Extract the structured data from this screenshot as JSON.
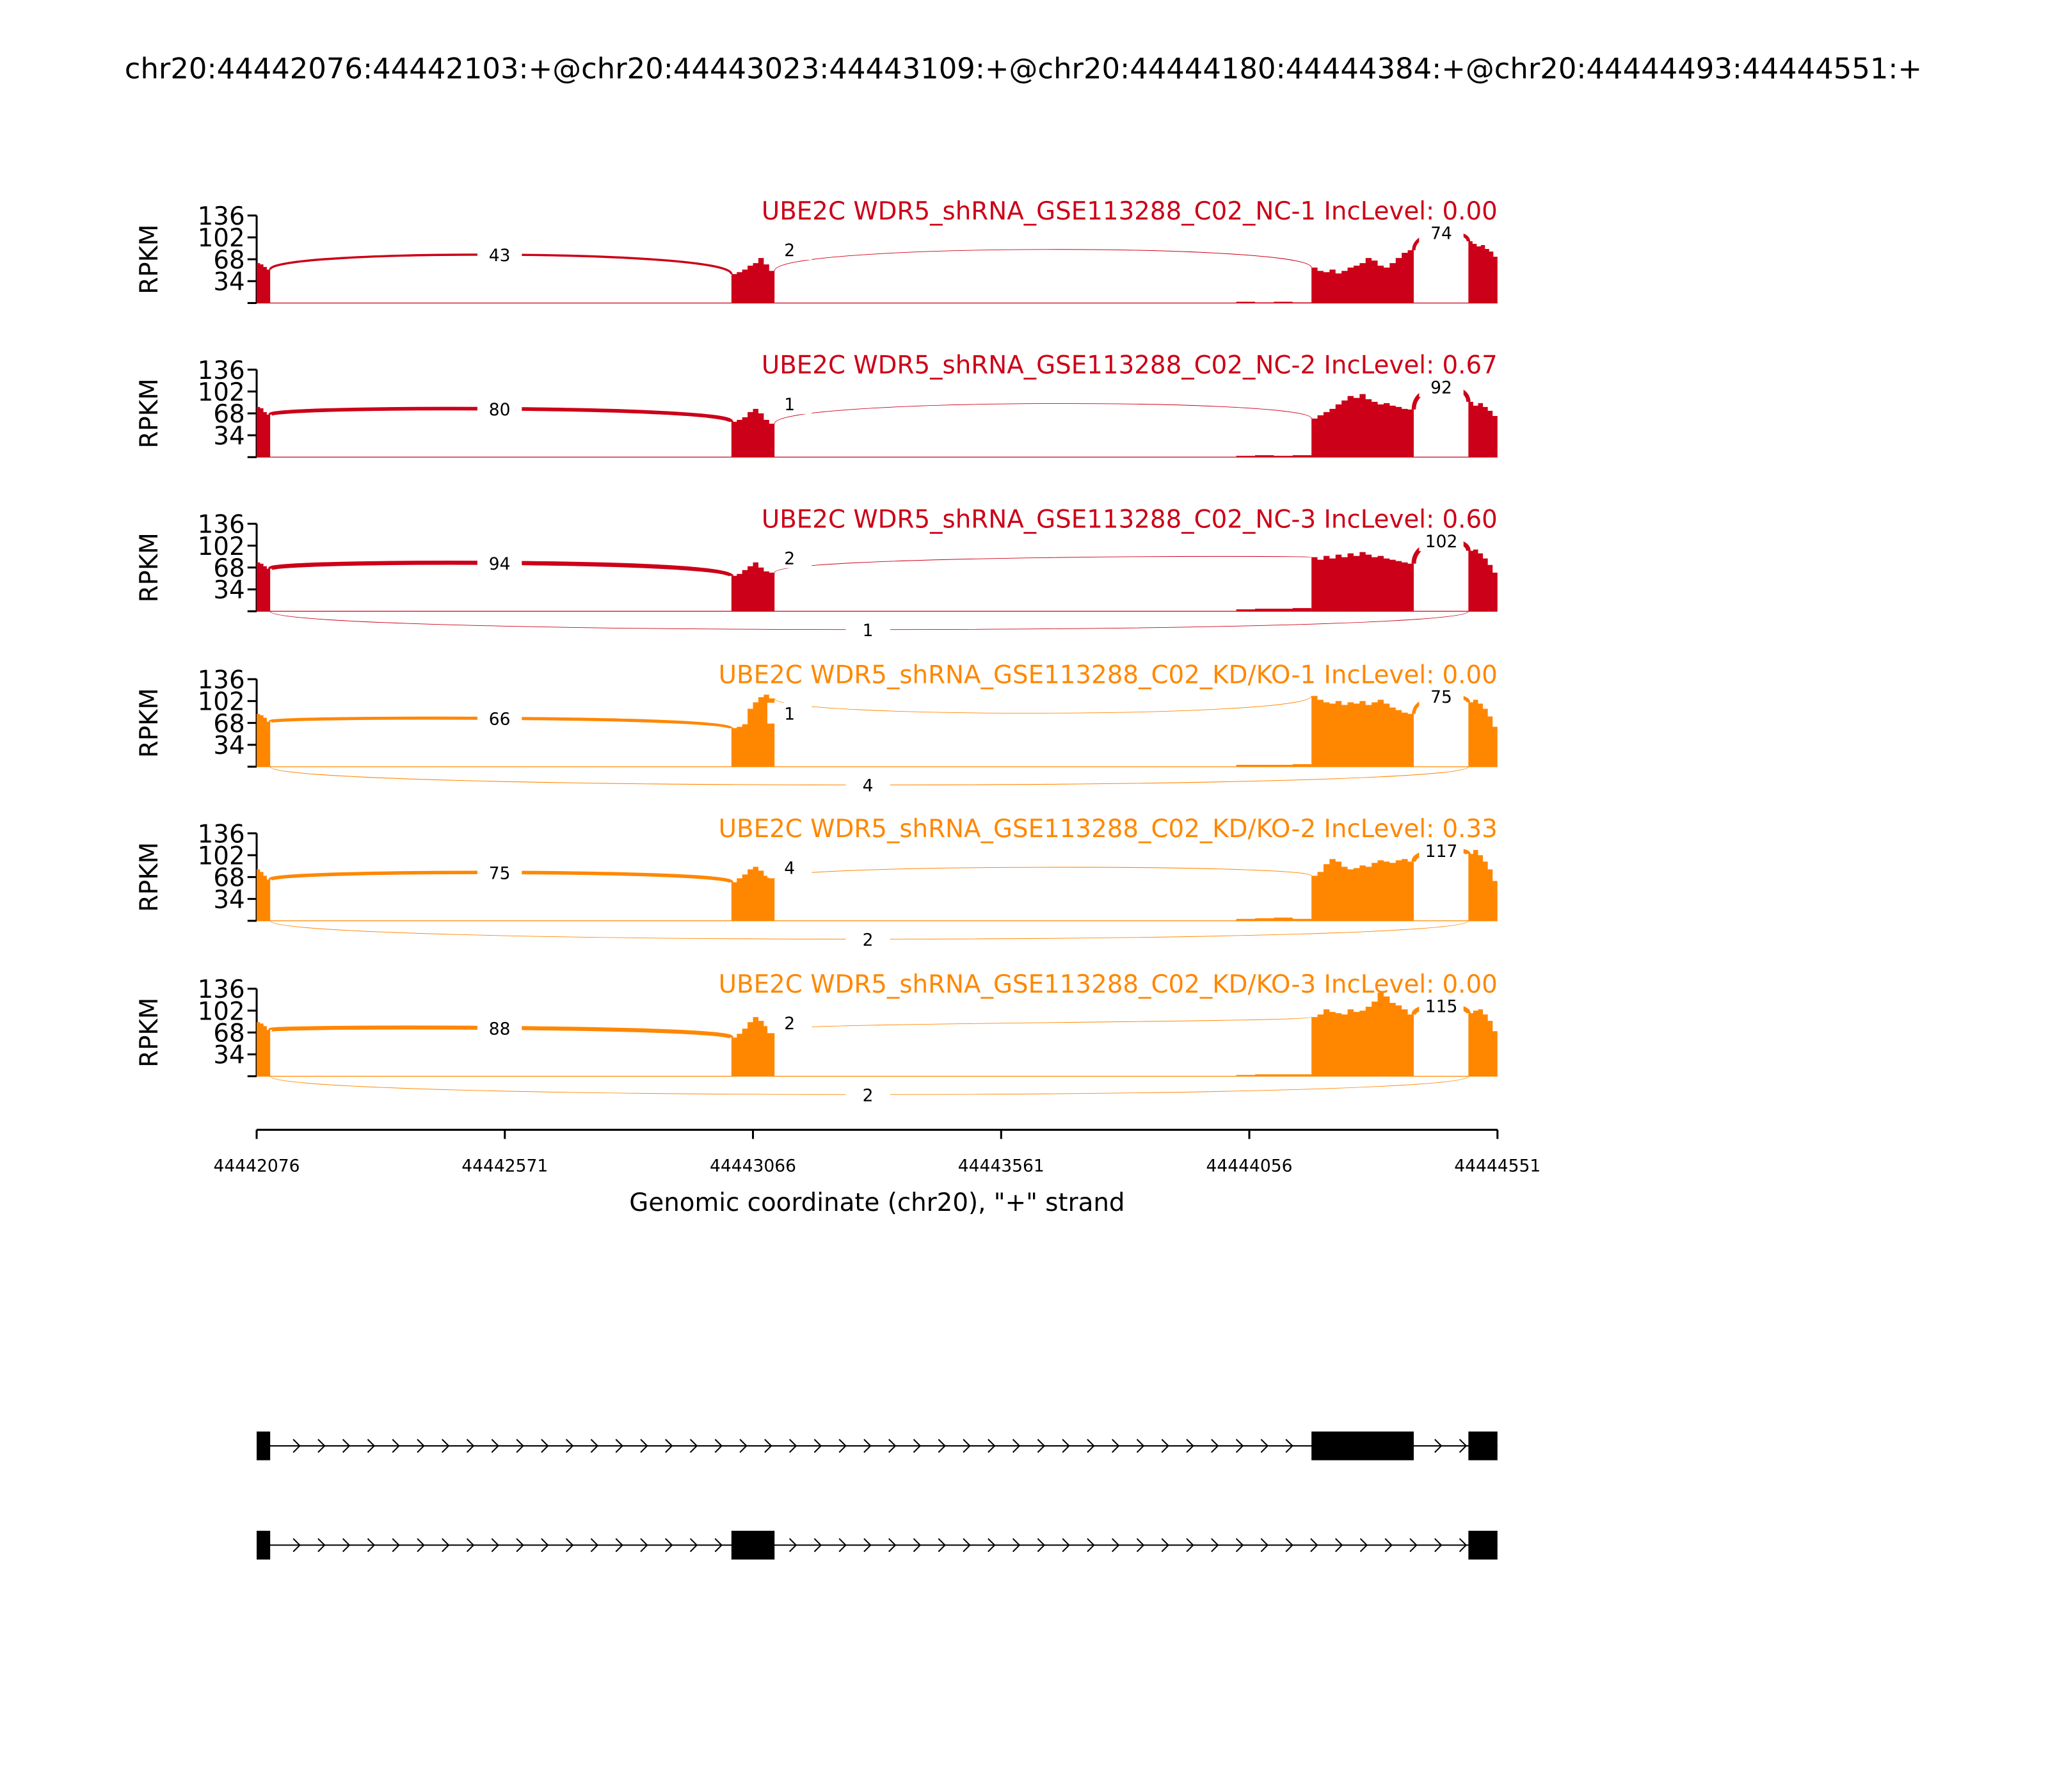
{
  "figure_title": "chr20:44442076:44442103:+@chr20:44443023:44443109:+@chr20:44444180:44444384:+@chr20:44444493:44444551:+",
  "chart_data": {
    "type": "area",
    "subtype": "sashimi",
    "xlabel": "Genomic coordinate (chr20), \"+\" strand",
    "ylabel": "RPKM",
    "xlim": [
      44442076,
      44444551
    ],
    "ylim": [
      0,
      136
    ],
    "x_ticks": [
      "44442076",
      "44442571",
      "44443066",
      "44443561",
      "44444056",
      "44444551"
    ],
    "y_ticks": [
      "136",
      "102",
      "68",
      "34"
    ],
    "exons": [
      {
        "start": 44442076,
        "end": 44442103
      },
      {
        "start": 44443023,
        "end": 44443109
      },
      {
        "start": 44444180,
        "end": 44444384
      },
      {
        "start": 44444493,
        "end": 44444551
      }
    ],
    "low_region": {
      "start": 44444030,
      "end": 44444180
    },
    "colors": {
      "NC": "#cc0018",
      "KD": "#ff8700"
    },
    "samples": [
      {
        "name": "UBE2C WDR5_shRNA_GSE113288_C02_NC-1 IncLevel: 0.00",
        "group": "NC",
        "coverage": {
          "e1": [
            62,
            60,
            56,
            52
          ],
          "e2": [
            45,
            48,
            52,
            58,
            62,
            70,
            60,
            50
          ],
          "e3": [
            55,
            50,
            48,
            52,
            46,
            50,
            55,
            58,
            62,
            70,
            66,
            58,
            55,
            62,
            70,
            78,
            82
          ],
          "e4": [
            96,
            92,
            88,
            90,
            84,
            80,
            72
          ],
          "low": [
            2,
            1,
            2,
            1
          ]
        },
        "junctions": {
          "j12": "43",
          "j23": "2",
          "j34": "74",
          "skip": null
        }
      },
      {
        "name": "UBE2C WDR5_shRNA_GSE113288_C02_NC-2 IncLevel: 0.67",
        "group": "NC",
        "coverage": {
          "e1": [
            78,
            76,
            70,
            66
          ],
          "e2": [
            55,
            58,
            62,
            70,
            75,
            68,
            58,
            52
          ],
          "e3": [
            60,
            65,
            70,
            75,
            82,
            88,
            95,
            92,
            98,
            90,
            86,
            82,
            84,
            80,
            78,
            75,
            74
          ],
          "e4": [
            86,
            80,
            84,
            78,
            72,
            64
          ],
          "low": [
            2,
            3,
            2,
            3
          ]
        },
        "junctions": {
          "j12": "80",
          "j23": "1",
          "j34": "92",
          "skip": null
        }
      },
      {
        "name": "UBE2C WDR5_shRNA_GSE113288_C02_NC-3 IncLevel: 0.60",
        "group": "NC",
        "coverage": {
          "e1": [
            76,
            74,
            70,
            66
          ],
          "e2": [
            55,
            58,
            64,
            70,
            76,
            68,
            62,
            60
          ],
          "e3": [
            84,
            80,
            86,
            82,
            88,
            84,
            90,
            86,
            92,
            88,
            84,
            86,
            82,
            80,
            78,
            76,
            74
          ],
          "e4": [
            94,
            96,
            90,
            82,
            72,
            60
          ],
          "low": [
            3,
            4,
            4,
            5
          ]
        },
        "junctions": {
          "j12": "94",
          "j23": "2",
          "j34": "102",
          "skip": "1"
        }
      },
      {
        "name": "UBE2C WDR5_shRNA_GSE113288_C02_KD/KO-1 IncLevel: 0.00",
        "group": "KD",
        "coverage": {
          "e1": [
            82,
            80,
            76,
            70
          ],
          "e2": [
            60,
            62,
            66,
            90,
            100,
            108,
            112,
            106
          ],
          "e3": [
            110,
            104,
            100,
            98,
            102,
            96,
            100,
            98,
            102,
            96,
            100,
            104,
            98,
            92,
            88,
            84,
            82
          ],
          "e4": [
            100,
            104,
            98,
            90,
            78,
            62
          ],
          "low": [
            3,
            3,
            3,
            4
          ]
        },
        "junctions": {
          "j12": "66",
          "j23": "1",
          "j34": "75",
          "skip": "4"
        }
      },
      {
        "name": "UBE2C WDR5_shRNA_GSE113288_C02_KD/KO-2 IncLevel: 0.33",
        "group": "KD",
        "coverage": {
          "e1": [
            80,
            76,
            70,
            64
          ],
          "e2": [
            60,
            66,
            72,
            80,
            84,
            78,
            70,
            66
          ],
          "e3": [
            70,
            76,
            88,
            96,
            92,
            84,
            80,
            82,
            86,
            84,
            90,
            94,
            92,
            90,
            94,
            96,
            92
          ],
          "e4": [
            104,
            110,
            102,
            92,
            80,
            62
          ],
          "low": [
            3,
            4,
            5,
            3
          ]
        },
        "junctions": {
          "j12": "75",
          "j23": "4",
          "j34": "117",
          "skip": "2"
        }
      },
      {
        "name": "UBE2C WDR5_shRNA_GSE113288_C02_KD/KO-3 IncLevel: 0.00",
        "group": "KD",
        "coverage": {
          "e1": [
            84,
            82,
            78,
            72
          ],
          "e2": [
            60,
            66,
            74,
            84,
            92,
            86,
            78,
            72
          ],
          "e3": [
            92,
            96,
            104,
            100,
            98,
            96,
            104,
            100,
            102,
            108,
            116,
            130,
            124,
            114,
            110,
            104,
            96
          ],
          "e4": [
            98,
            102,
            104,
            96,
            86,
            70
          ],
          "low": [
            2,
            3,
            3,
            3
          ]
        },
        "junctions": {
          "j12": "88",
          "j23": "2",
          "j34": "115",
          "skip": "2"
        }
      }
    ]
  },
  "transcripts": [
    {
      "exons": [
        0,
        2,
        3
      ]
    },
    {
      "exons": [
        0,
        1,
        3
      ]
    }
  ]
}
